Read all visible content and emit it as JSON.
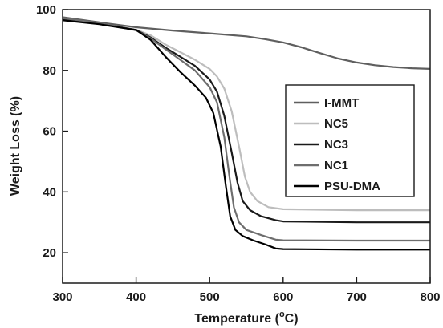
{
  "chart_data": {
    "type": "line",
    "title": "",
    "xlabel": "Temperature (",
    "xlabel_unit": "o",
    "xlabel_suffix": "C)",
    "ylabel": "Weight Loss (%)",
    "xlim": [
      300,
      800
    ],
    "ylim": [
      10,
      100
    ],
    "x_ticks": [
      300,
      400,
      500,
      600,
      700,
      800
    ],
    "y_ticks": [
      20,
      40,
      60,
      80,
      100
    ],
    "grid": false,
    "legend_position": "right",
    "series": [
      {
        "name": "I-MMT",
        "color": "#5f5f5f",
        "points": [
          [
            300,
            97.5
          ],
          [
            350,
            95.8
          ],
          [
            400,
            94.2
          ],
          [
            450,
            93.1
          ],
          [
            500,
            92.2
          ],
          [
            550,
            91.2
          ],
          [
            575,
            90.3
          ],
          [
            600,
            89.2
          ],
          [
            625,
            87.6
          ],
          [
            650,
            85.7
          ],
          [
            675,
            83.9
          ],
          [
            700,
            82.6
          ],
          [
            725,
            81.7
          ],
          [
            750,
            81.1
          ],
          [
            775,
            80.7
          ],
          [
            800,
            80.5
          ]
        ]
      },
      {
        "name": "NC5",
        "color": "#bdbdbd",
        "points": [
          [
            300,
            96.8
          ],
          [
            350,
            95.4
          ],
          [
            400,
            93.4
          ],
          [
            420,
            91.5
          ],
          [
            440,
            88.5
          ],
          [
            460,
            86.0
          ],
          [
            480,
            83.5
          ],
          [
            500,
            80.5
          ],
          [
            510,
            78.0
          ],
          [
            520,
            74.0
          ],
          [
            530,
            66.5
          ],
          [
            540,
            55.0
          ],
          [
            548,
            45.0
          ],
          [
            555,
            40.0
          ],
          [
            565,
            37.0
          ],
          [
            580,
            35.0
          ],
          [
            600,
            34.3
          ],
          [
            700,
            34.0
          ],
          [
            800,
            34.0
          ]
        ]
      },
      {
        "name": "NC3",
        "color": "#1a1a1a",
        "points": [
          [
            300,
            97.0
          ],
          [
            350,
            95.5
          ],
          [
            400,
            93.3
          ],
          [
            420,
            90.8
          ],
          [
            440,
            87.5
          ],
          [
            460,
            84.5
          ],
          [
            480,
            81.5
          ],
          [
            500,
            77.0
          ],
          [
            510,
            73.0
          ],
          [
            520,
            65.0
          ],
          [
            530,
            53.0
          ],
          [
            538,
            43.0
          ],
          [
            545,
            37.0
          ],
          [
            555,
            34.0
          ],
          [
            570,
            32.0
          ],
          [
            590,
            30.7
          ],
          [
            600,
            30.3
          ],
          [
            700,
            30.0
          ],
          [
            800,
            30.0
          ]
        ]
      },
      {
        "name": "NC1",
        "color": "#6e6e6e",
        "points": [
          [
            300,
            97.2
          ],
          [
            350,
            95.6
          ],
          [
            400,
            93.2
          ],
          [
            420,
            90.5
          ],
          [
            440,
            87.0
          ],
          [
            460,
            83.5
          ],
          [
            480,
            80.0
          ],
          [
            500,
            74.5
          ],
          [
            510,
            69.5
          ],
          [
            520,
            58.0
          ],
          [
            527,
            45.0
          ],
          [
            533,
            35.0
          ],
          [
            540,
            30.0
          ],
          [
            550,
            27.5
          ],
          [
            570,
            25.8
          ],
          [
            590,
            24.3
          ],
          [
            600,
            24.1
          ],
          [
            700,
            24.0
          ],
          [
            800,
            24.0
          ]
        ]
      },
      {
        "name": "PSU-DMA",
        "color": "#000000",
        "points": [
          [
            300,
            96.5
          ],
          [
            350,
            95.2
          ],
          [
            400,
            93.3
          ],
          [
            420,
            90.0
          ],
          [
            440,
            84.5
          ],
          [
            460,
            79.5
          ],
          [
            480,
            75.0
          ],
          [
            495,
            71.0
          ],
          [
            505,
            66.0
          ],
          [
            515,
            55.0
          ],
          [
            522,
            42.0
          ],
          [
            528,
            32.0
          ],
          [
            535,
            27.5
          ],
          [
            545,
            25.5
          ],
          [
            560,
            24.0
          ],
          [
            575,
            22.8
          ],
          [
            590,
            21.4
          ],
          [
            600,
            21.2
          ],
          [
            700,
            21.0
          ],
          [
            800,
            21.0
          ]
        ]
      }
    ]
  }
}
